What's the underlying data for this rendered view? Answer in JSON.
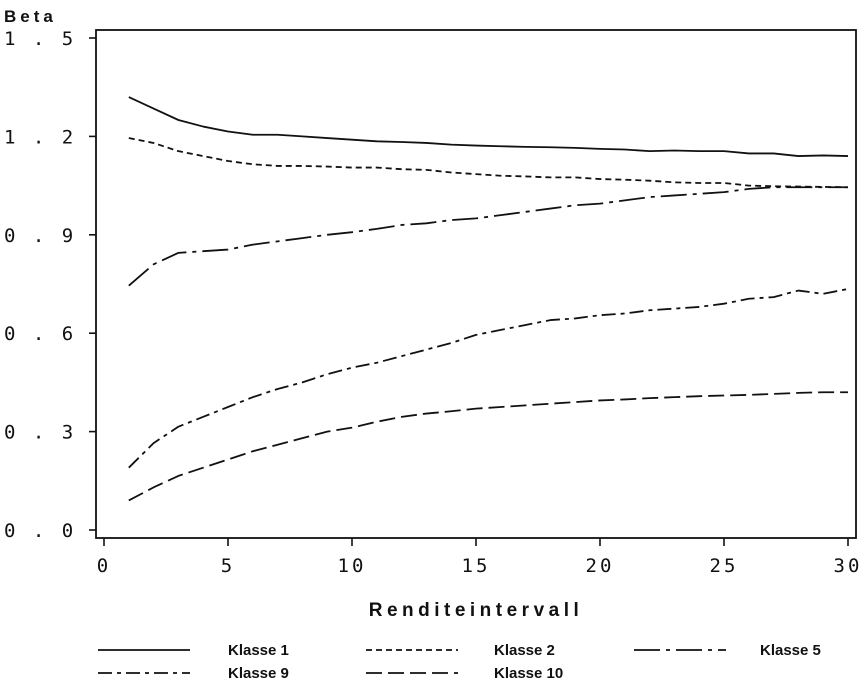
{
  "chart_data": {
    "type": "line",
    "title": "",
    "ylabel": "Beta",
    "xlabel": "Renditeintervall",
    "xlim": [
      0,
      30
    ],
    "ylim": [
      0.0,
      1.5
    ],
    "x_ticks": [
      "0",
      "5",
      "10",
      "15",
      "20",
      "25",
      "30"
    ],
    "y_ticks": [
      "0 . 0",
      "0 . 3",
      "0 . 6",
      "0 . 9",
      "1 . 2",
      "1 . 5"
    ],
    "grid": false,
    "legend_position": "bottom",
    "x": [
      1,
      2,
      3,
      4,
      5,
      6,
      7,
      8,
      9,
      10,
      11,
      12,
      13,
      14,
      15,
      16,
      17,
      18,
      19,
      20,
      21,
      22,
      23,
      24,
      25,
      26,
      27,
      28,
      29,
      30
    ],
    "series": [
      {
        "name": "Klasse 1",
        "dash": "solid",
        "values": [
          1.32,
          1.285,
          1.25,
          1.23,
          1.215,
          1.205,
          1.205,
          1.2,
          1.195,
          1.19,
          1.185,
          1.183,
          1.18,
          1.175,
          1.172,
          1.17,
          1.168,
          1.167,
          1.165,
          1.162,
          1.16,
          1.155,
          1.157,
          1.155,
          1.155,
          1.148,
          1.148,
          1.14,
          1.142,
          1.14
        ]
      },
      {
        "name": "Klasse 2",
        "dash": "short-dash",
        "values": [
          1.195,
          1.18,
          1.155,
          1.14,
          1.125,
          1.115,
          1.11,
          1.11,
          1.108,
          1.105,
          1.105,
          1.1,
          1.098,
          1.09,
          1.085,
          1.08,
          1.078,
          1.075,
          1.075,
          1.07,
          1.068,
          1.065,
          1.06,
          1.058,
          1.058,
          1.05,
          1.048,
          1.047,
          1.046,
          1.045
        ]
      },
      {
        "name": "Klasse 5",
        "dash": "long-dash-dot",
        "values": [
          0.745,
          0.81,
          0.845,
          0.85,
          0.855,
          0.87,
          0.88,
          0.89,
          0.9,
          0.908,
          0.918,
          0.93,
          0.935,
          0.945,
          0.95,
          0.96,
          0.97,
          0.98,
          0.99,
          0.995,
          1.005,
          1.015,
          1.02,
          1.025,
          1.03,
          1.04,
          1.045,
          1.045,
          1.045,
          1.045
        ]
      },
      {
        "name": "Klasse 9",
        "dash": "dash-dot",
        "values": [
          0.19,
          0.265,
          0.315,
          0.345,
          0.375,
          0.405,
          0.43,
          0.45,
          0.475,
          0.495,
          0.51,
          0.53,
          0.55,
          0.57,
          0.595,
          0.61,
          0.625,
          0.64,
          0.645,
          0.655,
          0.66,
          0.67,
          0.675,
          0.68,
          0.69,
          0.705,
          0.71,
          0.73,
          0.72,
          0.735
        ]
      },
      {
        "name": "Klasse 10",
        "dash": "long-dash",
        "values": [
          0.09,
          0.13,
          0.165,
          0.19,
          0.215,
          0.24,
          0.26,
          0.28,
          0.3,
          0.312,
          0.33,
          0.345,
          0.355,
          0.362,
          0.37,
          0.375,
          0.38,
          0.385,
          0.39,
          0.395,
          0.398,
          0.402,
          0.405,
          0.408,
          0.41,
          0.412,
          0.415,
          0.418,
          0.42,
          0.42
        ]
      }
    ]
  }
}
